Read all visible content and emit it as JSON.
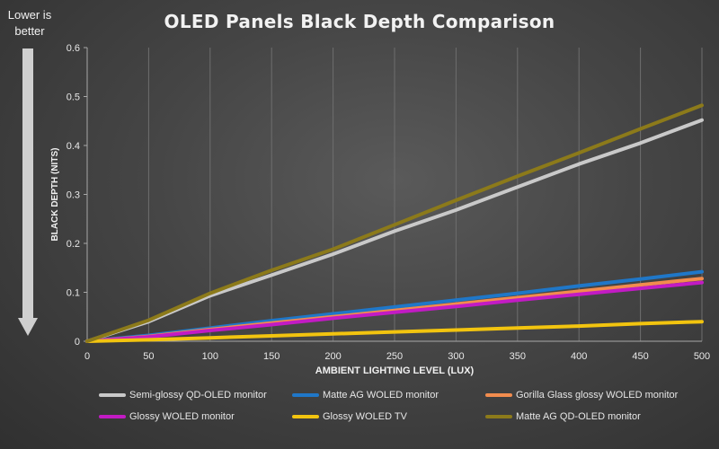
{
  "chart_data": {
    "type": "line",
    "title": "OLED Panels Black Depth Comparison",
    "annotation": [
      "Lower is",
      "better"
    ],
    "xlabel": "AMBIENT LIGHTING LEVEL (LUX)",
    "ylabel": "BLACK DEPTH (NITS)",
    "xlim": [
      0,
      500
    ],
    "ylim": [
      0,
      0.6
    ],
    "xticks": [
      0,
      50,
      100,
      150,
      200,
      250,
      300,
      350,
      400,
      450,
      500
    ],
    "xtick_labels": [
      "0",
      "50",
      "100",
      "150",
      "200",
      "250",
      "300",
      "350",
      "400",
      "450",
      "500"
    ],
    "yticks": [
      0,
      0.1,
      0.2,
      0.3,
      0.4,
      0.5,
      0.6
    ],
    "ytick_labels": [
      "0",
      "0.1",
      "0.2",
      "0.3",
      "0.4",
      "0.5",
      "0.6"
    ],
    "grid": "vertical",
    "legend_position": "bottom",
    "x": [
      0,
      50,
      100,
      150,
      200,
      250,
      300,
      350,
      400,
      450,
      500
    ],
    "series": [
      {
        "name": "Semi-glossy QD-OLED monitor",
        "color": "#c9c9c9",
        "values": [
          0,
          0.04,
          0.093,
          0.135,
          0.178,
          0.225,
          0.268,
          0.315,
          0.362,
          0.405,
          0.452
        ]
      },
      {
        "name": "Matte AG WOLED monitor",
        "color": "#1f77c8",
        "values": [
          0,
          0.012,
          0.027,
          0.042,
          0.056,
          0.07,
          0.084,
          0.098,
          0.113,
          0.127,
          0.142
        ]
      },
      {
        "name": "Gorilla Glass glossy WOLED monitor",
        "color": "#f28c4e",
        "values": [
          0,
          0.01,
          0.024,
          0.037,
          0.05,
          0.063,
          0.076,
          0.089,
          0.102,
          0.115,
          0.128
        ]
      },
      {
        "name": "Glossy WOLED monitor",
        "color": "#c21bc4",
        "values": [
          0,
          0.009,
          0.022,
          0.034,
          0.047,
          0.059,
          0.071,
          0.084,
          0.096,
          0.108,
          0.12
        ]
      },
      {
        "name": "Glossy WOLED TV",
        "color": "#f2c40f",
        "values": [
          0,
          0.003,
          0.007,
          0.011,
          0.015,
          0.019,
          0.023,
          0.027,
          0.031,
          0.036,
          0.04
        ]
      },
      {
        "name": "Matte AG QD-OLED monitor",
        "color": "#8c7a1a",
        "values": [
          0,
          0.043,
          0.098,
          0.145,
          0.188,
          0.238,
          0.288,
          0.337,
          0.385,
          0.434,
          0.482
        ]
      }
    ]
  }
}
